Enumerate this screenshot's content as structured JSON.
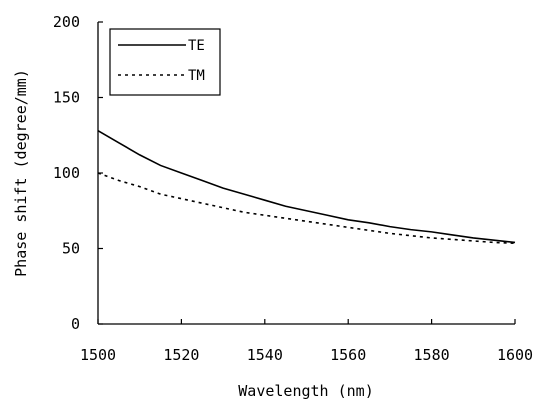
{
  "chart_data": {
    "type": "line",
    "xlabel": "Wavelength (nm)",
    "ylabel": "Phase shift (degree/mm)",
    "xlim": [
      1500,
      1600
    ],
    "ylim": [
      0,
      200
    ],
    "x_ticks": [
      "1500",
      "1520",
      "1540",
      "1560",
      "1580",
      "1600"
    ],
    "y_ticks": [
      "0",
      "50",
      "100",
      "150",
      "200"
    ],
    "grid": false,
    "legend_position": "top-left",
    "series": [
      {
        "name": "TE",
        "style": "solid",
        "color": "#000000",
        "x": [
          1500,
          1505,
          1510,
          1515,
          1520,
          1525,
          1530,
          1535,
          1540,
          1545,
          1550,
          1555,
          1560,
          1565,
          1570,
          1575,
          1580,
          1585,
          1590,
          1595,
          1600
        ],
        "y": [
          128,
          120,
          112,
          105,
          100,
          95,
          90,
          86,
          82,
          78,
          75,
          72,
          69,
          67,
          64.5,
          62.5,
          61,
          59,
          57,
          55.5,
          54
        ]
      },
      {
        "name": "TM",
        "style": "dashed",
        "color": "#000000",
        "x": [
          1500,
          1505,
          1510,
          1515,
          1520,
          1525,
          1530,
          1535,
          1540,
          1545,
          1550,
          1555,
          1560,
          1565,
          1570,
          1575,
          1580,
          1585,
          1590,
          1595,
          1600
        ],
        "y": [
          100,
          95,
          91,
          86,
          83,
          80,
          77,
          74,
          72,
          70,
          68,
          66,
          64,
          62,
          60,
          58.5,
          57,
          56,
          55,
          54,
          53.5
        ]
      }
    ]
  }
}
